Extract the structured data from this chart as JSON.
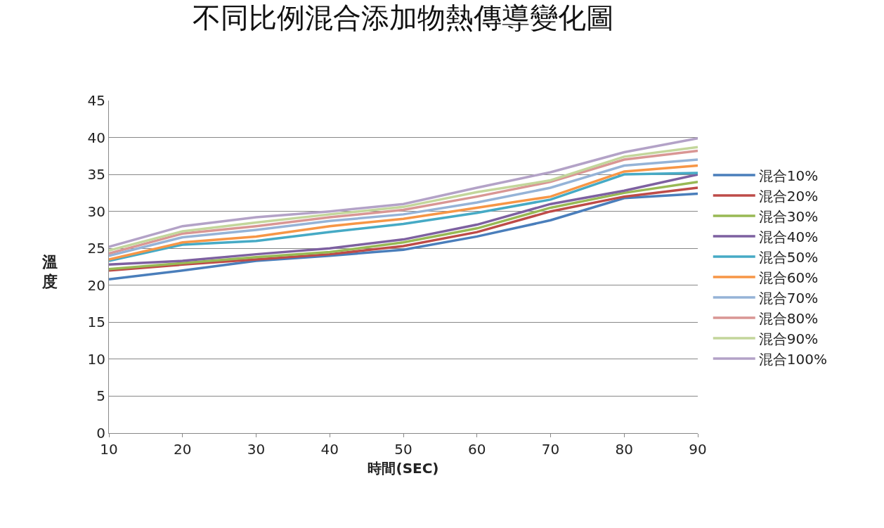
{
  "chart_data": {
    "type": "line",
    "title": "不同比例混合添加物熱傳導變化圖",
    "xlabel": "時間(SEC)",
    "ylabel": "溫度",
    "x": [
      10,
      20,
      30,
      40,
      50,
      60,
      70,
      80,
      90
    ],
    "xlim": [
      10,
      90
    ],
    "xticks": [
      10,
      20,
      30,
      40,
      50,
      60,
      70,
      80,
      90
    ],
    "ylim": [
      0,
      45
    ],
    "yticks": [
      0,
      5,
      10,
      15,
      20,
      25,
      30,
      35,
      40,
      45
    ],
    "grid": "y",
    "legend": "right",
    "marker": "none",
    "line_style": "solid",
    "series": [
      {
        "name": "混合10%",
        "color": "#4a7ebb",
        "values": [
          20.8,
          22,
          23.3,
          24,
          24.8,
          26.6,
          28.8,
          31.8,
          32.4
        ]
      },
      {
        "name": "混合20%",
        "color": "#be4b48",
        "values": [
          22,
          22.8,
          23.5,
          24.2,
          25.3,
          27.2,
          30,
          32,
          33.2
        ]
      },
      {
        "name": "混合30%",
        "color": "#98b954",
        "values": [
          22.2,
          23,
          23.8,
          24.5,
          25.8,
          27.7,
          30.5,
          32.5,
          34
        ]
      },
      {
        "name": "混合40%",
        "color": "#7d60a0",
        "values": [
          22.8,
          23.3,
          24.2,
          25,
          26.2,
          28.2,
          31,
          32.8,
          35
        ]
      },
      {
        "name": "混合50%",
        "color": "#46aac5",
        "values": [
          23.3,
          25.5,
          26,
          27.2,
          28.3,
          29.8,
          31.6,
          35,
          35.2
        ]
      },
      {
        "name": "混合60%",
        "color": "#f79646",
        "values": [
          23.5,
          25.8,
          26.6,
          28,
          29,
          30.5,
          32,
          35.4,
          36.2
        ]
      },
      {
        "name": "混合70%",
        "color": "#95b3d7",
        "values": [
          24,
          26.5,
          27.5,
          28.7,
          29.6,
          31.2,
          33.2,
          36.2,
          37
        ]
      },
      {
        "name": "混合80%",
        "color": "#d99694",
        "values": [
          24.3,
          27,
          28,
          29.2,
          30.2,
          32,
          34,
          37,
          38.2
        ]
      },
      {
        "name": "混合90%",
        "color": "#c3d69b",
        "values": [
          24.7,
          27.3,
          28.5,
          29.6,
          30.6,
          32.6,
          34.2,
          37.4,
          38.7
        ]
      },
      {
        "name": "混合100%",
        "color": "#b3a2c7",
        "values": [
          25.2,
          28,
          29.2,
          30,
          31,
          33.2,
          35.3,
          38,
          39.9
        ]
      }
    ]
  }
}
